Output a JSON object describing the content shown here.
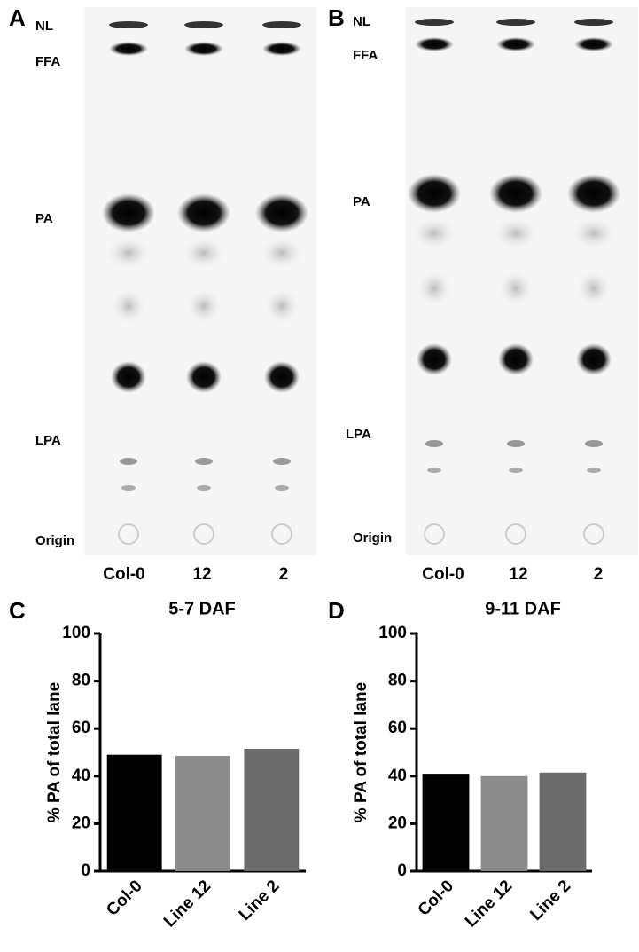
{
  "panels": [
    {
      "letter": "A",
      "bands": [
        "NL",
        "FFA",
        "PA",
        "LPA",
        "Origin"
      ],
      "lanes": [
        "Col-0",
        "12",
        "2"
      ]
    },
    {
      "letter": "B",
      "bands": [
        "NL",
        "FFA",
        "PA",
        "LPA",
        "Origin"
      ],
      "lanes": [
        "Col-0",
        "12",
        "2"
      ]
    }
  ],
  "chart_data": [
    {
      "type": "bar",
      "letter": "C",
      "title": "5-7 DAF",
      "y_label": "% PA of total lane",
      "categories": [
        "Col-0",
        "Line 12",
        "Line 2"
      ],
      "values": [
        49,
        48.5,
        51.5
      ],
      "colors": [
        "#000000",
        "#8c8c8c",
        "#6b6b6b"
      ],
      "ylim": [
        0,
        100
      ],
      "yticks": [
        0,
        20,
        40,
        60,
        80,
        100
      ]
    },
    {
      "type": "bar",
      "letter": "D",
      "title": "9-11 DAF",
      "y_label": "% PA of total lane",
      "categories": [
        "Col-0",
        "Line 12",
        "Line 2"
      ],
      "values": [
        41,
        40,
        41.5
      ],
      "colors": [
        "#000000",
        "#8c8c8c",
        "#6b6b6b"
      ],
      "ylim": [
        0,
        100
      ],
      "yticks": [
        0,
        20,
        40,
        60,
        80,
        100
      ]
    }
  ]
}
